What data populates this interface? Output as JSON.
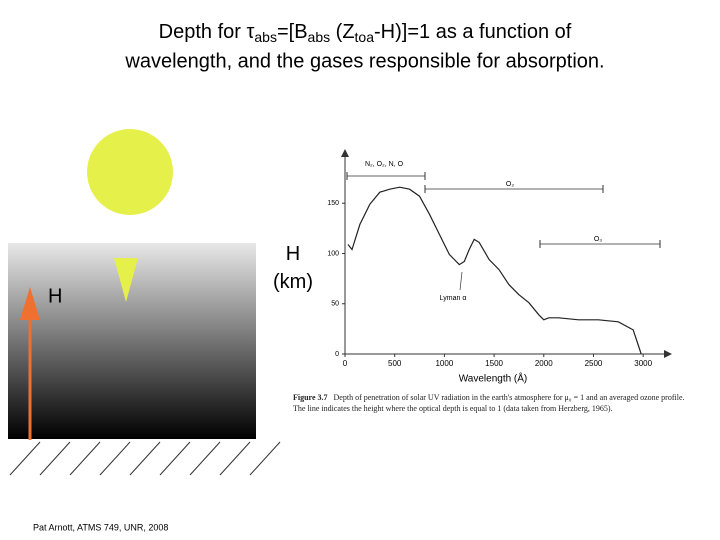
{
  "slide": {
    "title_line1": [
      {
        "text": "Depth for ",
        "sub": false
      },
      {
        "text": "τ",
        "sub": false
      },
      {
        "text": "abs",
        "sub": true
      },
      {
        "text": "=[B",
        "sub": false
      },
      {
        "text": "abs",
        "sub": true
      },
      {
        "text": " (Z",
        "sub": false
      },
      {
        "text": "toa",
        "sub": true
      },
      {
        "text": "-H)]=1 as a function of",
        "sub": false
      }
    ],
    "title_line2": "wavelength, and the gases responsible for absorption.",
    "height_label": "H",
    "footer": "Pat Arnott, ATMS 749, UNR, 2008"
  },
  "chart_data": {
    "type": "line",
    "xlabel": "Wavelength (Å)",
    "ylabel": "H (km)",
    "xlim": [
      0,
      3250
    ],
    "ylim": [
      0,
      200
    ],
    "xticks": [
      0,
      500,
      1000,
      1500,
      2000,
      2500,
      3000
    ],
    "yticks": [
      0,
      50,
      100,
      150
    ],
    "grid": false,
    "color": "#222222",
    "x": [
      30,
      70,
      150,
      250,
      350,
      450,
      550,
      650,
      750,
      850,
      950,
      1000,
      1050,
      1100,
      1150,
      1200,
      1250,
      1300,
      1350,
      1450,
      1550,
      1650,
      1750,
      1850,
      1950,
      2000,
      2050,
      2150,
      2350,
      2550,
      2750,
      2900,
      2950,
      2980
    ],
    "values": [
      109,
      104,
      129,
      149,
      161,
      164,
      166,
      164,
      157,
      139,
      119,
      109,
      99,
      94,
      89,
      92,
      104,
      114,
      111,
      94,
      84,
      69,
      59,
      51,
      39,
      34,
      36,
      36,
      34,
      34,
      32,
      24,
      9,
      0
    ],
    "annotations": [
      "N₂, O₂, N, O",
      "O₂",
      "O₃",
      "Lyman α"
    ],
    "caption_label": "Figure 3.7",
    "caption": "Depth of penetration of solar UV radiation in the earth's atmosphere for μ₀ = 1 and an averaged ozone profile. The line indicates the height where the optical depth is equal to 1 (data taken from Herzberg, 1965)."
  }
}
